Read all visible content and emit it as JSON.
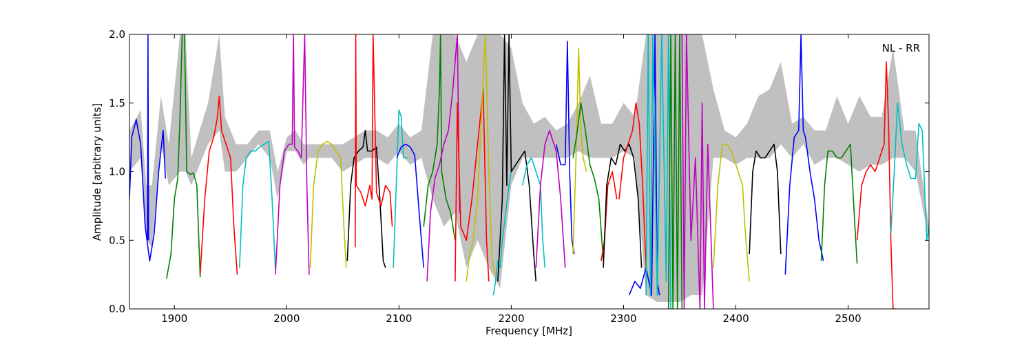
{
  "chart_data": {
    "type": "line",
    "xlabel": "Frequency [MHz]",
    "ylabel": "Amplitude [arbitrary units]",
    "annotation": "NL - RR",
    "xlim": [
      1860,
      2572
    ],
    "ylim": [
      0.0,
      2.0
    ],
    "xticks": [
      1900,
      2000,
      2100,
      2200,
      2300,
      2400,
      2500
    ],
    "xtick_labels": [
      "1900",
      "2000",
      "2100",
      "2200",
      "2300",
      "2400",
      "2500"
    ],
    "yticks": [
      0.0,
      0.5,
      1.0,
      1.5,
      2.0
    ],
    "ytick_labels": [
      "0.0",
      "0.5",
      "1.0",
      "1.5",
      "2.0"
    ],
    "grid": false,
    "background": {
      "color": "#c0c0c0",
      "description_role": "reference envelope",
      "x": [
        1860,
        1870,
        1875,
        1880,
        1888,
        1895,
        1905,
        1910,
        1915,
        1930,
        1940,
        1945,
        1955,
        1965,
        1975,
        1985,
        1992,
        2000,
        2008,
        2015,
        2020,
        2030,
        2040,
        2050,
        2060,
        2070,
        2080,
        2090,
        2100,
        2110,
        2120,
        2130,
        2140,
        2150,
        2160,
        2170,
        2180,
        2190,
        2200,
        2210,
        2220,
        2230,
        2240,
        2250,
        2260,
        2270,
        2280,
        2290,
        2300,
        2310,
        2320,
        2330,
        2340,
        2350,
        2360,
        2370,
        2380,
        2390,
        2400,
        2410,
        2420,
        2430,
        2440,
        2450,
        2460,
        2470,
        2480,
        2490,
        2500,
        2510,
        2520,
        2530,
        2540,
        2550,
        2560,
        2572
      ],
      "upper": [
        1.3,
        1.45,
        0.9,
        0.9,
        1.55,
        1.2,
        2.0,
        2.0,
        1.1,
        1.5,
        2.0,
        1.4,
        1.2,
        1.2,
        1.3,
        1.3,
        1.0,
        1.25,
        1.3,
        1.2,
        1.2,
        1.2,
        1.2,
        1.2,
        1.25,
        1.3,
        1.3,
        1.25,
        1.35,
        1.25,
        1.3,
        2.0,
        2.0,
        2.0,
        1.8,
        2.0,
        2.0,
        2.0,
        1.9,
        1.5,
        1.35,
        1.4,
        1.3,
        1.35,
        1.5,
        1.7,
        1.35,
        1.35,
        1.5,
        1.4,
        2.0,
        2.0,
        2.0,
        2.0,
        2.0,
        2.0,
        1.6,
        1.3,
        1.25,
        1.35,
        1.55,
        1.6,
        1.8,
        1.35,
        1.4,
        1.3,
        1.3,
        1.55,
        1.35,
        1.55,
        1.4,
        1.4,
        1.9,
        1.3,
        1.3,
        0.6
      ],
      "lower": [
        1.0,
        1.1,
        0.5,
        0.45,
        1.2,
        0.9,
        1.0,
        1.0,
        0.9,
        1.2,
        1.3,
        1.0,
        1.0,
        1.1,
        1.2,
        1.1,
        0.8,
        1.15,
        1.15,
        1.05,
        1.1,
        1.1,
        1.1,
        1.0,
        1.05,
        1.1,
        1.1,
        1.05,
        1.15,
        1.05,
        1.1,
        0.8,
        0.6,
        0.7,
        0.3,
        0.5,
        0.3,
        0.15,
        0.9,
        1.1,
        1.1,
        1.1,
        1.1,
        1.1,
        1.15,
        1.1,
        1.1,
        1.1,
        1.15,
        1.1,
        0.1,
        0.05,
        0.05,
        0.05,
        0.1,
        0.1,
        1.1,
        1.1,
        1.05,
        1.1,
        1.1,
        1.1,
        1.2,
        1.1,
        1.2,
        1.05,
        1.1,
        1.1,
        1.05,
        1.0,
        1.05,
        1.05,
        1.1,
        1.1,
        1.0,
        0.5
      ]
    },
    "series": [
      {
        "color": "#0000ff",
        "x": [
          1860,
          1862,
          1866,
          1870,
          1874,
          1878,
          1882,
          1886,
          1890,
          1892
        ],
        "y": [
          0.8,
          1.25,
          1.38,
          1.2,
          0.6,
          0.35,
          0.55,
          1.0,
          1.3,
          0.95
        ]
      },
      {
        "color": "#0000ff",
        "x": [
          1876,
          1876.5,
          1877
        ],
        "y": [
          0.5,
          2.0,
          0.5
        ]
      },
      {
        "color": "#008000",
        "x": [
          1893,
          1897,
          1900,
          1903,
          1905,
          1907,
          1909,
          1911,
          1914,
          1917,
          1920,
          1923
        ],
        "y": [
          0.22,
          0.4,
          0.8,
          0.95,
          1.4,
          2.0,
          2.0,
          1.0,
          0.98,
          0.99,
          0.9,
          0.23
        ]
      },
      {
        "color": "#ff0000",
        "x": [
          1923,
          1927,
          1931,
          1935,
          1938,
          1940,
          1942,
          1946,
          1950,
          1953,
          1956
        ],
        "y": [
          0.25,
          0.8,
          1.15,
          1.25,
          1.38,
          1.55,
          1.3,
          1.2,
          1.1,
          0.6,
          0.25
        ]
      },
      {
        "color": "#00bfbf",
        "x": [
          1958,
          1961,
          1964,
          1968,
          1972,
          1976,
          1980,
          1984,
          1987,
          1990
        ],
        "y": [
          0.3,
          0.9,
          1.1,
          1.15,
          1.15,
          1.18,
          1.2,
          1.22,
          0.8,
          0.28
        ]
      },
      {
        "color": "#bf00bf",
        "x": [
          1990,
          1994,
          1998,
          2002,
          2005,
          2006,
          2007,
          2010,
          2013,
          2016,
          2018,
          2020
        ],
        "y": [
          0.25,
          0.9,
          1.15,
          1.2,
          1.2,
          2.0,
          1.18,
          1.15,
          1.1,
          2.0,
          0.9,
          0.25
        ]
      },
      {
        "color": "#bfbf00",
        "x": [
          2021,
          2024,
          2028,
          2032,
          2036,
          2040,
          2044,
          2048,
          2051,
          2053
        ],
        "y": [
          0.3,
          0.9,
          1.15,
          1.2,
          1.22,
          1.2,
          1.15,
          1.1,
          0.6,
          0.3
        ]
      },
      {
        "color": "#000000",
        "x": [
          2054,
          2057,
          2060,
          2064,
          2068,
          2070,
          2072,
          2076,
          2080,
          2083,
          2086,
          2088
        ],
        "y": [
          0.35,
          0.9,
          1.1,
          1.15,
          1.18,
          1.3,
          1.15,
          1.15,
          1.18,
          0.8,
          0.35,
          0.3
        ]
      },
      {
        "color": "#ff0000",
        "x": [
          2061,
          2061.5,
          2062,
          2066,
          2070,
          2074,
          2076,
          2077,
          2080,
          2084,
          2088,
          2092,
          2094
        ],
        "y": [
          0.45,
          2.0,
          0.9,
          0.85,
          0.75,
          0.9,
          0.8,
          2.0,
          0.85,
          0.75,
          0.9,
          0.85,
          0.6
        ]
      },
      {
        "color": "#00bfbf",
        "x": [
          2095,
          2098,
          2100,
          2102,
          2104,
          2106,
          2108
        ],
        "y": [
          0.3,
          1.0,
          1.45,
          1.4,
          1.1,
          1.1,
          1.1
        ]
      },
      {
        "color": "#0000ff",
        "x": [
          2098,
          2102,
          2106,
          2110,
          2114,
          2118,
          2122
        ],
        "y": [
          1.1,
          1.18,
          1.2,
          1.18,
          1.12,
          0.7,
          0.3
        ]
      },
      {
        "color": "#008000",
        "x": [
          2122,
          2126,
          2130,
          2134,
          2136,
          2137,
          2138,
          2142,
          2146,
          2150
        ],
        "y": [
          0.6,
          0.9,
          1.0,
          1.2,
          1.6,
          2.0,
          1.0,
          0.8,
          0.7,
          0.5
        ]
      },
      {
        "color": "#bf00bf",
        "x": [
          2125,
          2128,
          2132,
          2136,
          2140,
          2144,
          2148,
          2152,
          2154
        ],
        "y": [
          0.2,
          0.7,
          0.95,
          1.05,
          1.2,
          1.3,
          1.6,
          2.0,
          0.7
        ]
      },
      {
        "color": "#ff0000",
        "x": [
          2150,
          2152,
          2155,
          2160,
          2165,
          2170,
          2175,
          2178,
          2180
        ],
        "y": [
          0.2,
          1.5,
          0.6,
          0.5,
          0.8,
          1.2,
          1.6,
          0.5,
          0.2
        ]
      },
      {
        "color": "#bfbf00",
        "x": [
          2160,
          2163,
          2166,
          2170,
          2174,
          2177,
          2180,
          2183,
          2186
        ],
        "y": [
          0.2,
          0.4,
          0.5,
          0.8,
          1.5,
          2.0,
          1.0,
          0.35,
          0.25
        ]
      },
      {
        "color": "#00bfbf",
        "x": [
          2184,
          2186,
          2188,
          2190,
          2192,
          2195,
          2198,
          2200
        ],
        "y": [
          0.1,
          0.2,
          0.35,
          0.3,
          0.5,
          0.7,
          0.9,
          1.0
        ]
      },
      {
        "color": "#000000",
        "x": [
          2188,
          2190,
          2192,
          2194,
          2196,
          2198,
          2200,
          2204,
          2208,
          2212,
          2216,
          2220,
          2222
        ],
        "y": [
          0.2,
          0.5,
          0.8,
          2.0,
          0.9,
          2.0,
          1.0,
          1.05,
          1.1,
          1.15,
          0.9,
          0.4,
          0.2
        ]
      },
      {
        "color": "#00bfbf",
        "x": [
          2210,
          2214,
          2218,
          2222,
          2226,
          2228,
          2230
        ],
        "y": [
          0.9,
          1.05,
          1.1,
          1.0,
          0.9,
          0.5,
          0.3
        ]
      },
      {
        "color": "#bf00bf",
        "x": [
          2222,
          2226,
          2230,
          2234,
          2236,
          2240,
          2244,
          2248
        ],
        "y": [
          0.3,
          0.9,
          1.2,
          1.3,
          1.25,
          1.15,
          0.8,
          0.3
        ]
      },
      {
        "color": "#0000ff",
        "x": [
          2240,
          2244,
          2248,
          2250,
          2252,
          2254,
          2256
        ],
        "y": [
          1.2,
          1.05,
          1.05,
          1.95,
          1.0,
          0.5,
          0.4
        ]
      },
      {
        "color": "#bfbf00",
        "x": [
          2255,
          2258,
          2260,
          2262,
          2264,
          2267
        ],
        "y": [
          0.4,
          1.2,
          1.9,
          1.3,
          1.1,
          1.0
        ]
      },
      {
        "color": "#008000",
        "x": [
          2255,
          2258,
          2262,
          2266,
          2270,
          2274,
          2278,
          2282
        ],
        "y": [
          1.1,
          1.25,
          1.5,
          1.3,
          1.05,
          0.95,
          0.8,
          0.35
        ]
      },
      {
        "color": "#ff0000",
        "x": [
          2280,
          2283,
          2286,
          2290,
          2294
        ],
        "y": [
          0.35,
          0.5,
          0.9,
          1.0,
          0.8
        ]
      },
      {
        "color": "#000000",
        "x": [
          2282,
          2285,
          2289,
          2293,
          2297,
          2301,
          2305,
          2309,
          2313,
          2316
        ],
        "y": [
          0.3,
          0.9,
          1.1,
          1.05,
          1.2,
          1.15,
          1.2,
          1.1,
          0.8,
          0.3
        ]
      },
      {
        "color": "#ff0000",
        "x": [
          2296,
          2300,
          2304,
          2308,
          2311,
          2314,
          2317,
          2320
        ],
        "y": [
          0.8,
          1.1,
          1.2,
          1.3,
          1.5,
          1.35,
          0.9,
          0.3
        ]
      },
      {
        "color": "#0000ff",
        "x": [
          2305,
          2310,
          2315,
          2320,
          2325,
          2328,
          2330,
          2332
        ],
        "y": [
          0.1,
          0.2,
          0.15,
          0.3,
          0.1,
          2.0,
          0.2,
          0.1
        ]
      },
      {
        "color": "#00bfbf",
        "x": [
          2320,
          2322,
          2324,
          2326,
          2330,
          2334,
          2338,
          2340,
          2342
        ],
        "y": [
          0.1,
          2.0,
          0.1,
          2.0,
          0.1,
          2.0,
          0.2,
          2.0,
          0.0
        ]
      },
      {
        "color": "#008000",
        "x": [
          2340,
          2342,
          2344,
          2346,
          2348,
          2350,
          2352
        ],
        "y": [
          0.0,
          2.0,
          0.0,
          2.0,
          0.0,
          2.0,
          0.0
        ]
      },
      {
        "color": "#bf00bf",
        "x": [
          2352,
          2354,
          2356,
          2360,
          2364,
          2368,
          2370,
          2372,
          2375,
          2380
        ],
        "y": [
          2.0,
          0.0,
          2.0,
          0.5,
          1.1,
          0.0,
          1.5,
          0.0,
          1.2,
          0.0
        ]
      },
      {
        "color": "#bfbf00",
        "x": [
          2380,
          2384,
          2388,
          2392,
          2396,
          2400,
          2404,
          2406,
          2408,
          2412
        ],
        "y": [
          0.3,
          0.9,
          1.2,
          1.2,
          1.15,
          1.05,
          0.95,
          0.9,
          0.6,
          0.2
        ]
      },
      {
        "color": "#000000",
        "x": [
          2412,
          2415,
          2418,
          2422,
          2426,
          2430,
          2434,
          2437,
          2440
        ],
        "y": [
          0.4,
          1.0,
          1.15,
          1.1,
          1.1,
          1.15,
          1.2,
          1.0,
          0.4
        ]
      },
      {
        "color": "#0000ff",
        "x": [
          2444,
          2448,
          2452,
          2456,
          2458,
          2460,
          2462,
          2466,
          2470,
          2474,
          2478
        ],
        "y": [
          0.25,
          0.9,
          1.25,
          1.3,
          2.0,
          1.3,
          1.25,
          1.0,
          0.8,
          0.5,
          0.35
        ]
      },
      {
        "color": "#008000",
        "x": [
          2476,
          2479,
          2482,
          2486,
          2490,
          2494,
          2498,
          2502,
          2506,
          2508
        ],
        "y": [
          0.35,
          0.9,
          1.15,
          1.15,
          1.1,
          1.1,
          1.15,
          1.2,
          0.6,
          0.33
        ]
      },
      {
        "color": "#ff0000",
        "x": [
          2508,
          2512,
          2516,
          2520,
          2524,
          2528,
          2532,
          2534,
          2536,
          2538,
          2540,
          2542
        ],
        "y": [
          0.5,
          0.9,
          1.0,
          1.05,
          1.0,
          1.1,
          1.2,
          1.8,
          1.35,
          0.5,
          0.0,
          0.0
        ]
      },
      {
        "color": "#00bfbf",
        "x": [
          2538,
          2541,
          2544,
          2548,
          2552,
          2556,
          2560,
          2563,
          2566,
          2570,
          2572
        ],
        "y": [
          0.55,
          1.0,
          1.5,
          1.2,
          1.05,
          0.95,
          0.95,
          1.35,
          1.3,
          0.5,
          0.6
        ]
      }
    ]
  }
}
